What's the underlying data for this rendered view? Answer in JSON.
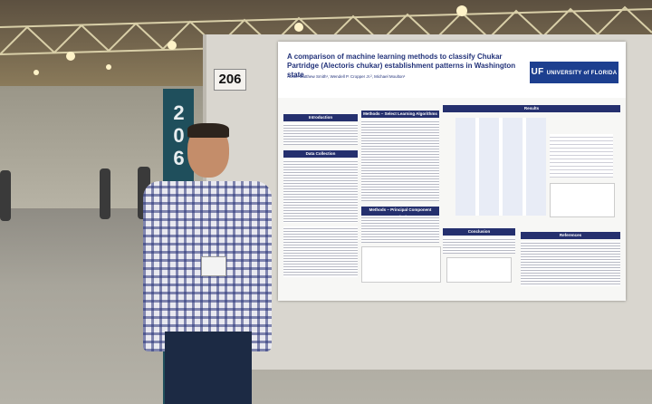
{
  "booth": {
    "pole_number": "206",
    "sign_number": "206"
  },
  "poster": {
    "title": "A comparison of machine learning methods to classify Chukar Partridge (Alectoris chukar) establishment patterns in Washington state",
    "authors": "Austin Matthew Smith¹, Wendell P. Cropper Jr.², Michael Moulton¹",
    "logo_prefix": "UF",
    "logo_text": "UNIVERSITY of FLORIDA",
    "sections": {
      "introduction": "Introduction",
      "methods_slr": "Methods – Select Learning Algorithms",
      "results": "Results",
      "data_collection": "Data Collection",
      "methods_pca": "Methods – Principal Component Analysis",
      "conclusion": "Conclusion",
      "references": "References"
    }
  },
  "colors": {
    "poster_accent": "#25306e",
    "pole": "#1f4f5c"
  }
}
